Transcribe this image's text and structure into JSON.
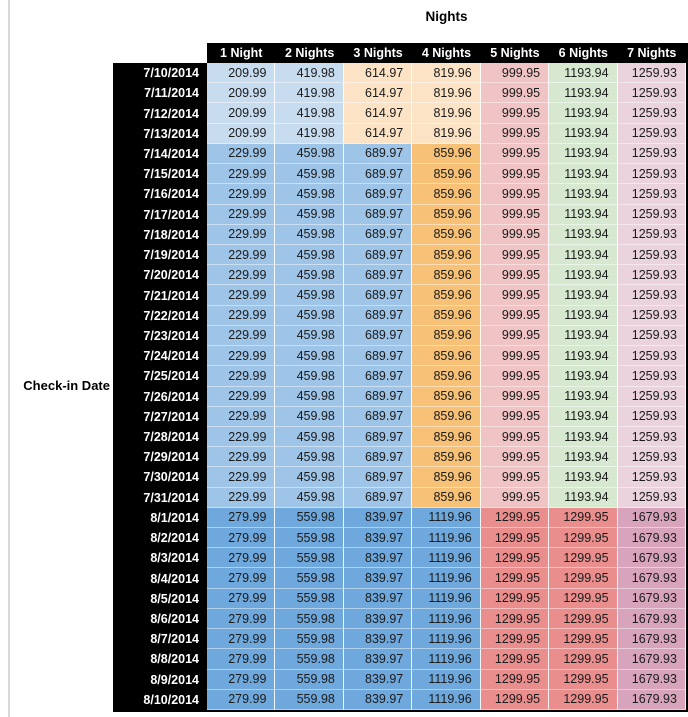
{
  "chart_data": {
    "type": "table",
    "title": "Nights",
    "row_axis_label": "Check-in Date",
    "columns": [
      "1 Night",
      "2 Nights",
      "3 Nights",
      "4 Nights",
      "5 Nights",
      "6 Nights",
      "7 Nights"
    ],
    "rows": [
      {
        "date": "7/10/2014",
        "band": "early",
        "values": [
          "209.99",
          "419.98",
          "614.97",
          "819.96",
          "999.95",
          "1193.94",
          "1259.93"
        ]
      },
      {
        "date": "7/11/2014",
        "band": "early",
        "values": [
          "209.99",
          "419.98",
          "614.97",
          "819.96",
          "999.95",
          "1193.94",
          "1259.93"
        ]
      },
      {
        "date": "7/12/2014",
        "band": "early",
        "values": [
          "209.99",
          "419.98",
          "614.97",
          "819.96",
          "999.95",
          "1193.94",
          "1259.93"
        ]
      },
      {
        "date": "7/13/2014",
        "band": "early",
        "values": [
          "209.99",
          "419.98",
          "614.97",
          "819.96",
          "999.95",
          "1193.94",
          "1259.93"
        ]
      },
      {
        "date": "7/14/2014",
        "band": "mid",
        "values": [
          "229.99",
          "459.98",
          "689.97",
          "859.96",
          "999.95",
          "1193.94",
          "1259.93"
        ]
      },
      {
        "date": "7/15/2014",
        "band": "mid",
        "values": [
          "229.99",
          "459.98",
          "689.97",
          "859.96",
          "999.95",
          "1193.94",
          "1259.93"
        ]
      },
      {
        "date": "7/16/2014",
        "band": "mid",
        "values": [
          "229.99",
          "459.98",
          "689.97",
          "859.96",
          "999.95",
          "1193.94",
          "1259.93"
        ]
      },
      {
        "date": "7/17/2014",
        "band": "mid",
        "values": [
          "229.99",
          "459.98",
          "689.97",
          "859.96",
          "999.95",
          "1193.94",
          "1259.93"
        ]
      },
      {
        "date": "7/18/2014",
        "band": "mid",
        "values": [
          "229.99",
          "459.98",
          "689.97",
          "859.96",
          "999.95",
          "1193.94",
          "1259.93"
        ]
      },
      {
        "date": "7/19/2014",
        "band": "mid",
        "values": [
          "229.99",
          "459.98",
          "689.97",
          "859.96",
          "999.95",
          "1193.94",
          "1259.93"
        ]
      },
      {
        "date": "7/20/2014",
        "band": "mid",
        "values": [
          "229.99",
          "459.98",
          "689.97",
          "859.96",
          "999.95",
          "1193.94",
          "1259.93"
        ]
      },
      {
        "date": "7/21/2014",
        "band": "mid",
        "values": [
          "229.99",
          "459.98",
          "689.97",
          "859.96",
          "999.95",
          "1193.94",
          "1259.93"
        ]
      },
      {
        "date": "7/22/2014",
        "band": "mid",
        "values": [
          "229.99",
          "459.98",
          "689.97",
          "859.96",
          "999.95",
          "1193.94",
          "1259.93"
        ]
      },
      {
        "date": "7/23/2014",
        "band": "mid",
        "values": [
          "229.99",
          "459.98",
          "689.97",
          "859.96",
          "999.95",
          "1193.94",
          "1259.93"
        ]
      },
      {
        "date": "7/24/2014",
        "band": "mid",
        "values": [
          "229.99",
          "459.98",
          "689.97",
          "859.96",
          "999.95",
          "1193.94",
          "1259.93"
        ]
      },
      {
        "date": "7/25/2014",
        "band": "mid",
        "values": [
          "229.99",
          "459.98",
          "689.97",
          "859.96",
          "999.95",
          "1193.94",
          "1259.93"
        ]
      },
      {
        "date": "7/26/2014",
        "band": "mid",
        "values": [
          "229.99",
          "459.98",
          "689.97",
          "859.96",
          "999.95",
          "1193.94",
          "1259.93"
        ]
      },
      {
        "date": "7/27/2014",
        "band": "mid",
        "values": [
          "229.99",
          "459.98",
          "689.97",
          "859.96",
          "999.95",
          "1193.94",
          "1259.93"
        ]
      },
      {
        "date": "7/28/2014",
        "band": "mid",
        "values": [
          "229.99",
          "459.98",
          "689.97",
          "859.96",
          "999.95",
          "1193.94",
          "1259.93"
        ]
      },
      {
        "date": "7/29/2014",
        "band": "mid",
        "values": [
          "229.99",
          "459.98",
          "689.97",
          "859.96",
          "999.95",
          "1193.94",
          "1259.93"
        ]
      },
      {
        "date": "7/30/2014",
        "band": "mid",
        "values": [
          "229.99",
          "459.98",
          "689.97",
          "859.96",
          "999.95",
          "1193.94",
          "1259.93"
        ]
      },
      {
        "date": "7/31/2014",
        "band": "mid",
        "values": [
          "229.99",
          "459.98",
          "689.97",
          "859.96",
          "999.95",
          "1193.94",
          "1259.93"
        ]
      },
      {
        "date": "8/1/2014",
        "band": "late",
        "values": [
          "279.99",
          "559.98",
          "839.97",
          "1119.96",
          "1299.95",
          "1299.95",
          "1679.93"
        ]
      },
      {
        "date": "8/2/2014",
        "band": "late",
        "values": [
          "279.99",
          "559.98",
          "839.97",
          "1119.96",
          "1299.95",
          "1299.95",
          "1679.93"
        ]
      },
      {
        "date": "8/3/2014",
        "band": "late",
        "values": [
          "279.99",
          "559.98",
          "839.97",
          "1119.96",
          "1299.95",
          "1299.95",
          "1679.93"
        ]
      },
      {
        "date": "8/4/2014",
        "band": "late",
        "values": [
          "279.99",
          "559.98",
          "839.97",
          "1119.96",
          "1299.95",
          "1299.95",
          "1679.93"
        ]
      },
      {
        "date": "8/5/2014",
        "band": "late",
        "values": [
          "279.99",
          "559.98",
          "839.97",
          "1119.96",
          "1299.95",
          "1299.95",
          "1679.93"
        ]
      },
      {
        "date": "8/6/2014",
        "band": "late",
        "values": [
          "279.99",
          "559.98",
          "839.97",
          "1119.96",
          "1299.95",
          "1299.95",
          "1679.93"
        ]
      },
      {
        "date": "8/7/2014",
        "band": "late",
        "values": [
          "279.99",
          "559.98",
          "839.97",
          "1119.96",
          "1299.95",
          "1299.95",
          "1679.93"
        ]
      },
      {
        "date": "8/8/2014",
        "band": "late",
        "values": [
          "279.99",
          "559.98",
          "839.97",
          "1119.96",
          "1299.95",
          "1299.95",
          "1679.93"
        ]
      },
      {
        "date": "8/9/2014",
        "band": "late",
        "values": [
          "279.99",
          "559.98",
          "839.97",
          "1119.96",
          "1299.95",
          "1299.95",
          "1679.93"
        ]
      },
      {
        "date": "8/10/2014",
        "band": "late",
        "values": [
          "279.99",
          "559.98",
          "839.97",
          "1119.96",
          "1299.95",
          "1299.95",
          "1679.93"
        ]
      }
    ],
    "band_colors": {
      "early": [
        "#c8dcf0",
        "#c8dcf0",
        "#fce3c5",
        "#fce3c5",
        "#f0c3c4",
        "#d6e8d0",
        "#ebd3de"
      ],
      "mid": [
        "#9ec4e7",
        "#9ec4e7",
        "#9ec4e7",
        "#f7c277",
        "#f0c3c4",
        "#d6e8d0",
        "#ebd3de"
      ],
      "late": [
        "#6fa8dc",
        "#6fa8dc",
        "#6fa8dc",
        "#6fa8dc",
        "#e98d8d",
        "#e98d8d",
        "#d8a4bb"
      ]
    },
    "styles": {
      "header_bg": "#000000",
      "header_text": "#ffffff",
      "cell_text": "#1b1b1b",
      "pane_divider": "#d9d9d9"
    }
  }
}
